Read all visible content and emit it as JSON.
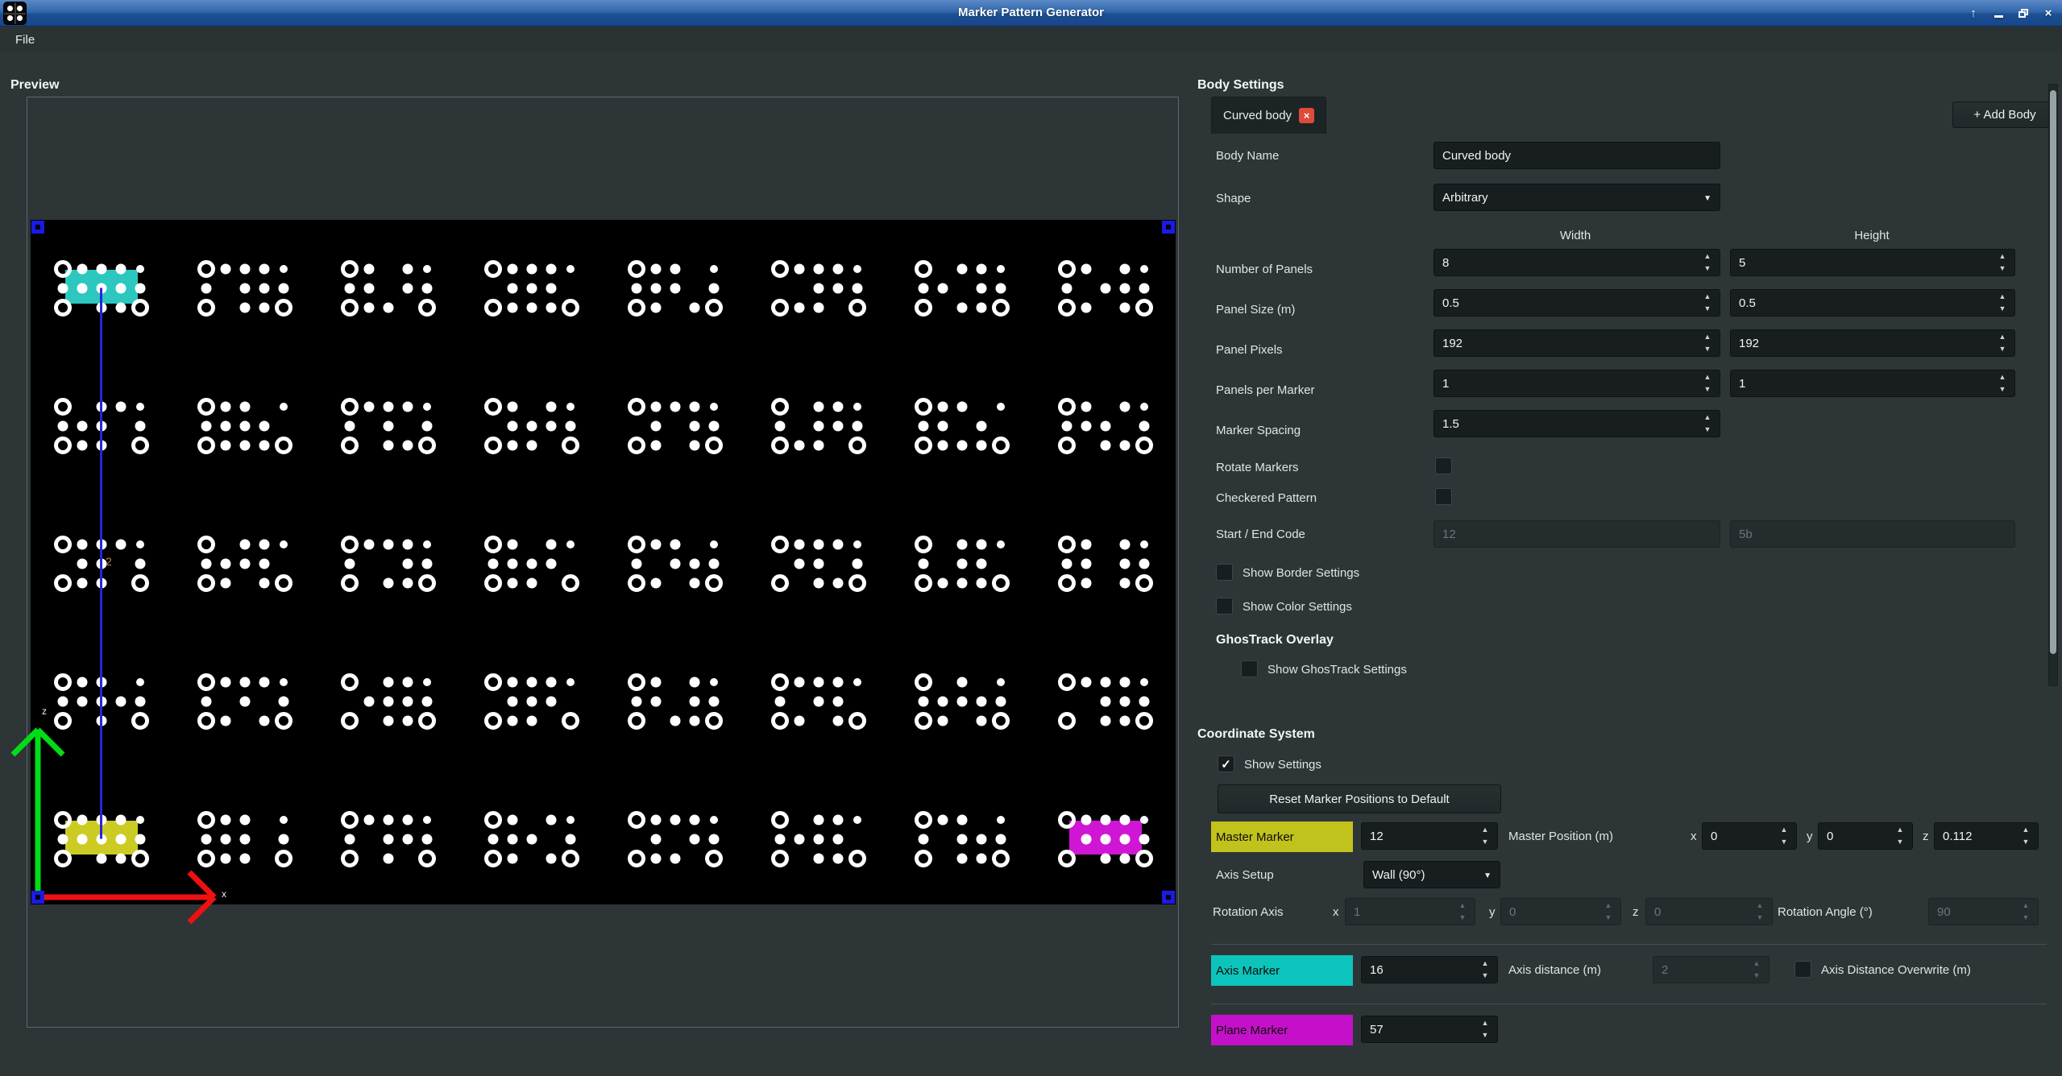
{
  "window": {
    "title": "Marker Pattern Generator",
    "controls": {
      "shade": "↑",
      "minimize": "minimize",
      "maximize": "maximize",
      "close": "×"
    }
  },
  "menu": {
    "file": "File"
  },
  "preview": {
    "label": "Preview",
    "grid": {
      "cols": 8,
      "rows": 5
    },
    "axis_labels": {
      "x": "x",
      "z": "z"
    },
    "distance_label": "2",
    "special_markers": {
      "axis": {
        "name": "Axis Marker",
        "id": "16",
        "color": "#2cc8bf",
        "row": 0,
        "col": 0
      },
      "master": {
        "name": "Master Marker",
        "id": "12",
        "color": "#cbcb24",
        "row": 4,
        "col": 0
      },
      "plane": {
        "name": "Plane Marker",
        "id": "57",
        "color": "#cf16d4",
        "row": 4,
        "col": 7
      }
    },
    "pattern_bits": [
      "11111111011",
      "11110111011",
      "10111011110",
      "11101110111",
      "11011101101",
      "11100111110",
      "01111011011",
      "10110111101",
      "01111101110",
      "11011110111",
      "11110101011",
      "10101111110",
      "11101011101",
      "01110111110",
      "11011010111",
      "10111101011",
      "11101101110",
      "01111110101",
      "11110011011",
      "10111110110",
      "11010111101",
      "11101101011",
      "01110110111",
      "10111011101",
      "11011111010",
      "11110101101",
      "01101111011",
      "11101110110",
      "10111011011",
      "11110110101",
      "01011111101",
      "11100111011",
      "11111111011",
      "11011101110",
      "11110111010",
      "10111101101",
      "11101011110",
      "01111110011",
      "11010111011",
      "11101111011"
    ]
  },
  "body_settings": {
    "title": "Body Settings",
    "tab_label": "Curved body",
    "tab_close": "×",
    "add_body_label": "+ Add Body",
    "body_name": {
      "label": "Body Name",
      "value": "Curved body"
    },
    "shape": {
      "label": "Shape",
      "value": "Arbitrary"
    },
    "columns": {
      "width": "Width",
      "height": "Height"
    },
    "panel_rows": [
      {
        "label": "Number of Panels",
        "w": "8",
        "h": "5"
      },
      {
        "label": "Panel Size (m)",
        "w": "0.5",
        "h": "0.5"
      },
      {
        "label": "Panel Pixels",
        "w": "192",
        "h": "192"
      },
      {
        "label": "Panels per Marker",
        "w": "1",
        "h": "1"
      },
      {
        "label": "Marker Spacing",
        "w": "1.5",
        "h": null
      }
    ],
    "rotate_markers": {
      "label": "Rotate Markers",
      "checked": false
    },
    "checkered_pattern": {
      "label": "Checkered Pattern",
      "checked": false
    },
    "start_end_code": {
      "label": "Start / End Code",
      "start": "12",
      "end": "5b"
    },
    "show_border": {
      "label": "Show Border Settings",
      "checked": false
    },
    "show_color": {
      "label": "Show Color Settings",
      "checked": false
    },
    "ghostrack": {
      "title": "GhosTrack Overlay",
      "show_label": "Show GhosTrack Settings",
      "checked": false
    }
  },
  "coordinate_system": {
    "title": "Coordinate System",
    "show_settings": {
      "label": "Show Settings",
      "checked": true
    },
    "reset_button": "Reset Marker Positions to Default",
    "master": {
      "label": "Master Marker",
      "value": "12",
      "pos_label": "Master Position (m)",
      "x_label": "x",
      "x": "0",
      "y_label": "y",
      "y": "0",
      "z_label": "z",
      "z": "0.112"
    },
    "axis_setup": {
      "label": "Axis Setup",
      "value": "Wall (90°)"
    },
    "rotation": {
      "label": "Rotation Axis",
      "x_label": "x",
      "x": "1",
      "y_label": "y",
      "y": "0",
      "z_label": "z",
      "z": "0",
      "angle_label": "Rotation Angle (°)",
      "angle": "90"
    },
    "axis_marker": {
      "label": "Axis Marker",
      "value": "16",
      "dist_label": "Axis distance (m)",
      "dist": "2",
      "overwrite_label": "Axis Distance Overwrite (m)",
      "overwrite_checked": false
    },
    "plane_marker": {
      "label": "Plane Marker",
      "value": "57"
    }
  },
  "colors": {
    "master_yellow": "#c2c21d",
    "axis_cyan": "#0cc4bb",
    "plane_magenta": "#c411c9",
    "axis_x_red": "#ee1111",
    "axis_z_green": "#00dd17",
    "link_blue": "#2626d8",
    "handle_blue": "#1a1ae6",
    "titlebar_blue": "#2a61a8",
    "tab_close_red": "#dd4b39"
  }
}
